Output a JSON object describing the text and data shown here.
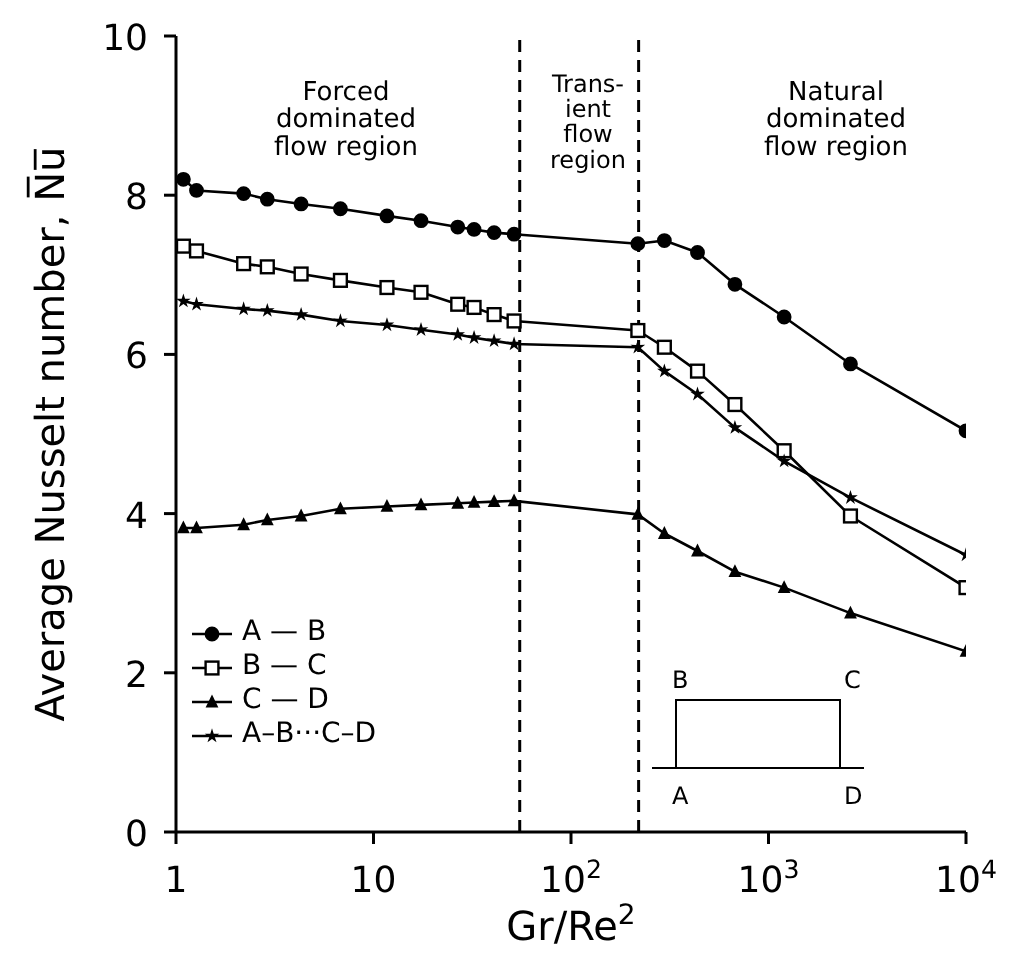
{
  "chart_data": {
    "type": "line",
    "xlabel": "Gr/Re$^{2}$",
    "ylabel": "Average Nusselt number, N̅u̅",
    "log": "x",
    "x": [
      1.09,
      1.27,
      2.2,
      2.9,
      4.3,
      6.8,
      11.7,
      17.4,
      26.7,
      32.3,
      40.8,
      51.5,
      218,
      297,
      437,
      676,
      1200,
      2600,
      10000
    ],
    "xlim": [
      1,
      10000
    ],
    "xticks": [
      1,
      10,
      {
        "value": 100,
        "label": "10$^{2}$"
      },
      {
        "value": 1000,
        "label": "10$^{3}$"
      },
      {
        "value": 10000,
        "label": "10$^{4}$"
      }
    ],
    "ylim": [
      0,
      10
    ],
    "yticks": [
      0,
      2,
      4,
      6,
      8,
      10
    ],
    "grid": false,
    "legend": "bottom left",
    "line_style": "solid",
    "series": [
      {
        "name": "A — B",
        "color": "#000000",
        "marker": "circle",
        "values": [
          8.2,
          8.06,
          8.02,
          7.95,
          7.89,
          7.83,
          7.74,
          7.68,
          7.6,
          7.57,
          7.53,
          7.51,
          7.39,
          7.43,
          7.28,
          6.88,
          6.47,
          5.88,
          5.04
        ]
      },
      {
        "name": "B — C",
        "color": "#000000",
        "marker": "square",
        "values": [
          7.36,
          7.3,
          7.14,
          7.1,
          7.01,
          6.93,
          6.84,
          6.78,
          6.63,
          6.59,
          6.5,
          6.42,
          6.3,
          6.09,
          5.79,
          5.37,
          4.79,
          3.97,
          3.07
        ]
      },
      {
        "name": "C — D",
        "color": "#000000",
        "marker": "triangle",
        "values": [
          3.82,
          3.82,
          3.86,
          3.92,
          3.97,
          4.06,
          4.09,
          4.11,
          4.13,
          4.14,
          4.15,
          4.16,
          3.99,
          3.75,
          3.53,
          3.27,
          3.07,
          2.75,
          2.27
        ]
      },
      {
        "name": "A–B···C–D",
        "color": "#000000",
        "marker": "star",
        "values": [
          6.67,
          6.63,
          6.57,
          6.55,
          6.5,
          6.42,
          6.37,
          6.31,
          6.25,
          6.21,
          6.17,
          6.13,
          6.09,
          5.79,
          5.5,
          5.08,
          4.66,
          4.2,
          3.48
        ]
      }
    ],
    "ref_lines": [
      {
        "axis": "x",
        "value": 55,
        "color": "#000000",
        "line_style": "dashed"
      },
      {
        "axis": "x",
        "value": 220,
        "color": "#000000",
        "line_style": "dashed"
      }
    ],
    "annotations": [
      "Forced\ndominated\nflow region",
      "Trans-\nient\nflow\nregion",
      "Natural\ndominated\nflow region",
      "B",
      "C",
      "A",
      "D"
    ]
  }
}
